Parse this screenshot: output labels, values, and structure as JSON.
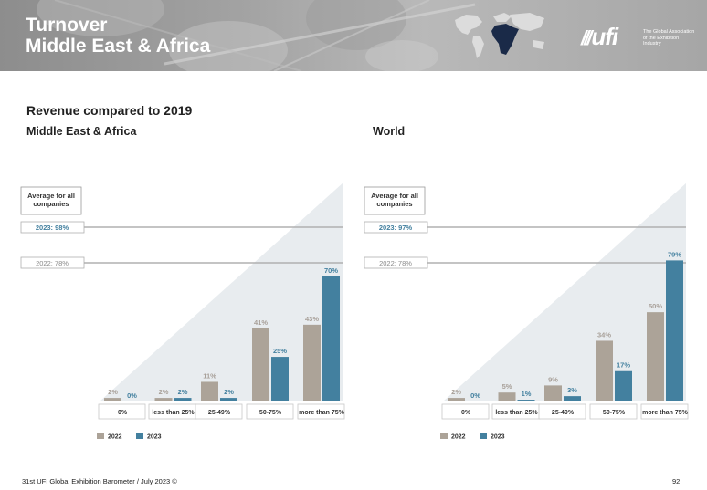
{
  "header": {
    "title_line1": "Turnover",
    "title_line2": "Middle East & Africa",
    "logo_text": "ufi",
    "logo_tagline": "The Global Association of the Exhibition Industry"
  },
  "subtitle": "Revenue compared to 2019",
  "panels": [
    {
      "region": "Middle East & Africa"
    },
    {
      "region": "World"
    }
  ],
  "colors": {
    "series_2022": "#aca398",
    "series_2023": "#43809f",
    "triangle": "#e8ecef",
    "header_bg": "#a3a3a3"
  },
  "chart_data": [
    {
      "type": "bar",
      "title": "Middle East & Africa",
      "categories": [
        "0%",
        "less than 25%",
        "25-49%",
        "50-75%",
        "more than 75%"
      ],
      "series": [
        {
          "name": "2022",
          "values": [
            2,
            2,
            11,
            41,
            43
          ],
          "labels": [
            "2%",
            "2%",
            "11%",
            "41%",
            "43%"
          ]
        },
        {
          "name": "2023",
          "values": [
            0,
            2,
            2,
            25,
            70
          ],
          "labels": [
            "0%",
            "2%",
            "2%",
            "25%",
            "70%"
          ]
        }
      ],
      "reference_box": "Average for all companies",
      "reference_lines": [
        {
          "label": "2023: 98%",
          "value": 98
        },
        {
          "label": "2022: 78%",
          "value": 78
        }
      ],
      "ylim": [
        0,
        80
      ],
      "legend": "bottom-left"
    },
    {
      "type": "bar",
      "title": "World",
      "categories": [
        "0%",
        "less than 25%",
        "25-49%",
        "50-75%",
        "more than 75%"
      ],
      "series": [
        {
          "name": "2022",
          "values": [
            2,
            5,
            9,
            34,
            50
          ],
          "labels": [
            "2%",
            "5%",
            "9%",
            "34%",
            "50%"
          ]
        },
        {
          "name": "2023",
          "values": [
            0,
            1,
            3,
            17,
            79
          ],
          "labels": [
            "0%",
            "1%",
            "3%",
            "17%",
            "79%"
          ]
        }
      ],
      "reference_box": "Average for all companies",
      "reference_lines": [
        {
          "label": "2023: 97%",
          "value": 97
        },
        {
          "label": "2022: 78%",
          "value": 78
        }
      ],
      "ylim": [
        0,
        80
      ],
      "legend": "bottom-left"
    }
  ],
  "footer": {
    "source": "31st UFI Global Exhibition Barometer / July 2023 ©",
    "page": "92"
  }
}
